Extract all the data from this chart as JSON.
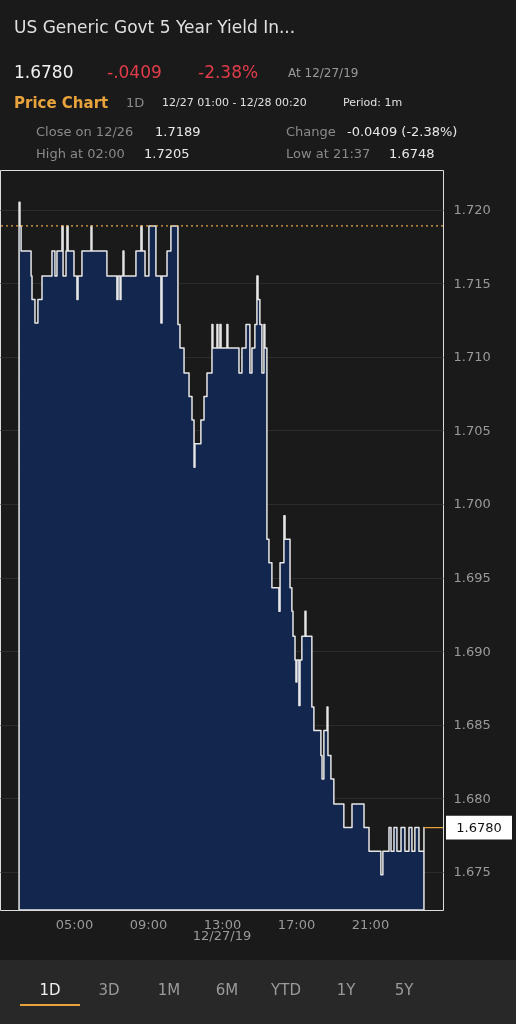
{
  "chart_data": {
    "type": "area",
    "title": "US Generic Govt 5 Year Yield In...",
    "xlabel": "12/27/19",
    "x": [
      2.03,
      2.08,
      2.14,
      2.68,
      2.73,
      2.89,
      3.05,
      3.27,
      3.81,
      3.97,
      4.08,
      4.35,
      4.41,
      4.57,
      4.62,
      4.68,
      5.0,
      5.16,
      5.22,
      5.43,
      5.92,
      5.97,
      6.78,
      7.32,
      7.38,
      7.49,
      7.54,
      7.65,
      7.7,
      8.35,
      8.62,
      8.68,
      8.84,
      9.05,
      9.43,
      9.7,
      9.76,
      10.03,
      10.24,
      10.62,
      10.73,
      10.95,
      11.22,
      11.38,
      11.49,
      11.54,
      11.86,
      12.03,
      12.19,
      12.46,
      12.51,
      12.73,
      12.78,
      12.89,
      12.95,
      13.27,
      13.32,
      13.92,
      14.08,
      14.3,
      14.51,
      14.62,
      14.78,
      14.89,
      14.95,
      15.05,
      15.16,
      15.27,
      15.32,
      15.43,
      15.54,
      15.7,
      16.08,
      16.14,
      16.35,
      16.41,
      16.68,
      16.78,
      16.84,
      16.95,
      17.0,
      17.05,
      17.16,
      17.22,
      17.32,
      17.49,
      17.54,
      17.86,
      17.97,
      18.35,
      18.41,
      18.51,
      18.68,
      18.73,
      18.89,
      19.05,
      19.59,
      20.03,
      20.68,
      20.95,
      21.59,
      21.7,
      22.03,
      22.14,
      22.3,
      22.46,
      22.68,
      22.89,
      23.11,
      23.27,
      23.43,
      23.65,
      23.92
    ],
    "series": [
      {
        "color": "#13264d",
        "values": [
          1.7205,
          1.7189,
          1.7172,
          1.7155,
          1.7139,
          1.7123,
          1.7139,
          1.7155,
          1.7172,
          1.7155,
          1.7172,
          1.7189,
          1.7155,
          1.7172,
          1.7189,
          1.7172,
          1.7155,
          1.7139,
          1.7155,
          1.7172,
          1.7189,
          1.7172,
          1.7155,
          1.7139,
          1.7155,
          1.7139,
          1.7155,
          1.7172,
          1.7155,
          1.7172,
          1.7189,
          1.7172,
          1.7155,
          1.7189,
          1.7155,
          1.7123,
          1.7155,
          1.7172,
          1.7189,
          1.7122,
          1.7106,
          1.7089,
          1.7073,
          1.7057,
          1.7025,
          1.7041,
          1.7057,
          1.7073,
          1.7089,
          1.7122,
          1.7106,
          1.7122,
          1.7106,
          1.7122,
          1.7106,
          1.7122,
          1.7106,
          1.7089,
          1.7106,
          1.7122,
          1.7089,
          1.7106,
          1.7122,
          1.7155,
          1.7139,
          1.7122,
          1.7089,
          1.7122,
          1.7106,
          1.6976,
          1.696,
          1.6943,
          1.6927,
          1.696,
          1.6992,
          1.6976,
          1.6943,
          1.6927,
          1.691,
          1.6894,
          1.6879,
          1.6894,
          1.6863,
          1.6894,
          1.691,
          1.6927,
          1.691,
          1.6862,
          1.6846,
          1.6829,
          1.6813,
          1.6846,
          1.6862,
          1.6829,
          1.6813,
          1.6796,
          1.678,
          1.6796,
          1.678,
          1.6764,
          1.6748,
          1.6764,
          1.678,
          1.6764,
          1.678,
          1.6764,
          1.678,
          1.6764,
          1.678,
          1.6764,
          1.678,
          1.6764,
          1.678
        ]
      }
    ],
    "xlim": [
      1,
      24.95
    ],
    "ylim": [
      1.6724,
      1.7227
    ],
    "xticks": [
      {
        "value": 5,
        "label": "05:00"
      },
      {
        "value": 9,
        "label": "09:00"
      },
      {
        "value": 13,
        "label": "13:00"
      },
      {
        "value": 17,
        "label": "17:00"
      },
      {
        "value": 21,
        "label": "21:00"
      }
    ],
    "yticks": [
      1.675,
      {
        "value": 1.68,
        "label": "1.680"
      },
      1.685,
      {
        "value": 1.69,
        "label": "1.690"
      },
      1.695,
      {
        "value": 1.7,
        "label": "1.700"
      },
      1.705,
      {
        "value": 1.71,
        "label": "1.710"
      },
      1.715,
      {
        "value": 1.72,
        "label": "1.720"
      }
    ],
    "grid": "y",
    "ref_lines": [
      {
        "axis": "y",
        "value": 1.7189,
        "color": "#e8a33d",
        "line_style": "dotted"
      }
    ],
    "annotations": [
      "1.6780",
      "-.0409",
      "-2.38%",
      "At 12/27/19",
      "Price Chart",
      "1D",
      "12/27 01:00 - 12/28 00:20",
      "Period: 1m",
      "Close on 12/26",
      "1.7189",
      "Change",
      "-0.0409 (-2.38%)",
      "High at 02:00",
      "1.7205",
      "Low at 21:37",
      "1.6748",
      "1D",
      "3D",
      "1M",
      "6M",
      "YTD",
      "1Y",
      "5Y",
      {
        "text": "1.6780",
        "x": 23.92,
        "y": 1.678
      }
    ]
  }
}
